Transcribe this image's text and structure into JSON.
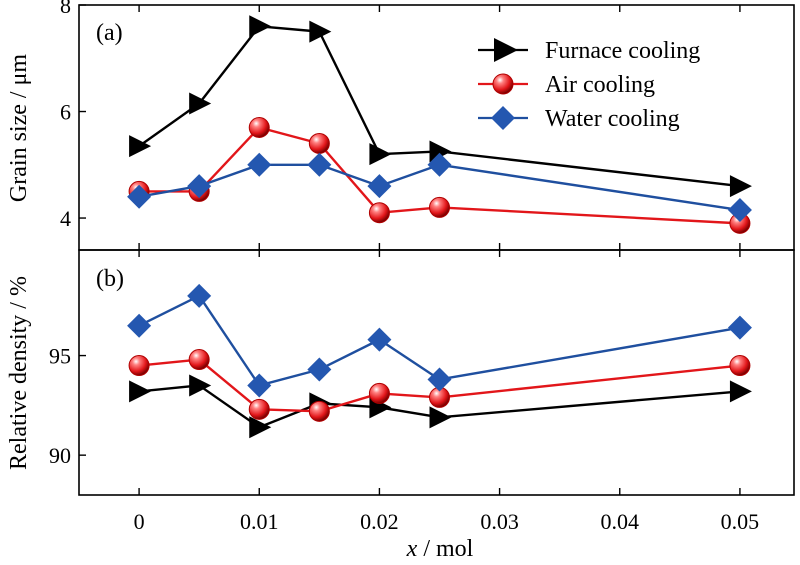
{
  "colors": {
    "furnace": "#000000",
    "air": "#e2161a",
    "air_marker": "#e2161a",
    "water": "#1f4f9f",
    "water_marker": "#2457b0"
  },
  "chart_data": [
    {
      "type": "line",
      "panel_label": "(a)",
      "ylabel": "Grain size / μm",
      "xlabel": "",
      "xlim": [
        -0.005,
        0.0545
      ],
      "ylim": [
        3.4,
        8.0
      ],
      "yticks": [
        4,
        6,
        8
      ],
      "ytick_labels": [
        "4",
        "6",
        "8"
      ],
      "grid": false,
      "legend_position": "top-right",
      "x": [
        0,
        0.005,
        0.01,
        0.015,
        0.02,
        0.025,
        0.05
      ],
      "series": [
        {
          "name": "Furnace cooling",
          "marker": "triangle-right",
          "color_key": "furnace",
          "values": [
            5.35,
            6.15,
            7.6,
            7.5,
            5.2,
            5.25,
            4.6
          ]
        },
        {
          "name": "Air cooling",
          "marker": "sphere",
          "color_key": "air",
          "values": [
            4.5,
            4.5,
            5.7,
            5.4,
            4.1,
            4.2,
            3.9
          ]
        },
        {
          "name": "Water cooling",
          "marker": "diamond",
          "color_key": "water",
          "values": [
            4.4,
            4.6,
            5.0,
            5.0,
            4.6,
            5.0,
            4.15
          ]
        }
      ]
    },
    {
      "type": "line",
      "panel_label": "(b)",
      "ylabel": "Relative density / %",
      "xlabel": "x / mol",
      "xlim": [
        -0.005,
        0.0545
      ],
      "ylim": [
        88.0,
        100.3
      ],
      "yticks": [
        90,
        95
      ],
      "ytick_labels": [
        "90",
        "95"
      ],
      "xticks": [
        0,
        0.01,
        0.02,
        0.03,
        0.04,
        0.05
      ],
      "xtick_labels": [
        "0",
        "0.01",
        "0.02",
        "0.03",
        "0.04",
        "0.05"
      ],
      "grid": false,
      "x": [
        0,
        0.005,
        0.01,
        0.015,
        0.02,
        0.025,
        0.05
      ],
      "series": [
        {
          "name": "Furnace cooling",
          "marker": "triangle-right",
          "color_key": "furnace",
          "values": [
            93.2,
            93.5,
            91.4,
            92.6,
            92.4,
            91.9,
            93.2
          ]
        },
        {
          "name": "Air cooling",
          "marker": "sphere",
          "color_key": "air",
          "values": [
            94.5,
            94.8,
            92.3,
            92.2,
            93.1,
            92.9,
            94.5
          ]
        },
        {
          "name": "Water cooling",
          "marker": "diamond",
          "color_key": "water",
          "values": [
            96.5,
            98.0,
            93.5,
            94.3,
            95.8,
            93.8,
            96.4
          ]
        }
      ]
    }
  ]
}
